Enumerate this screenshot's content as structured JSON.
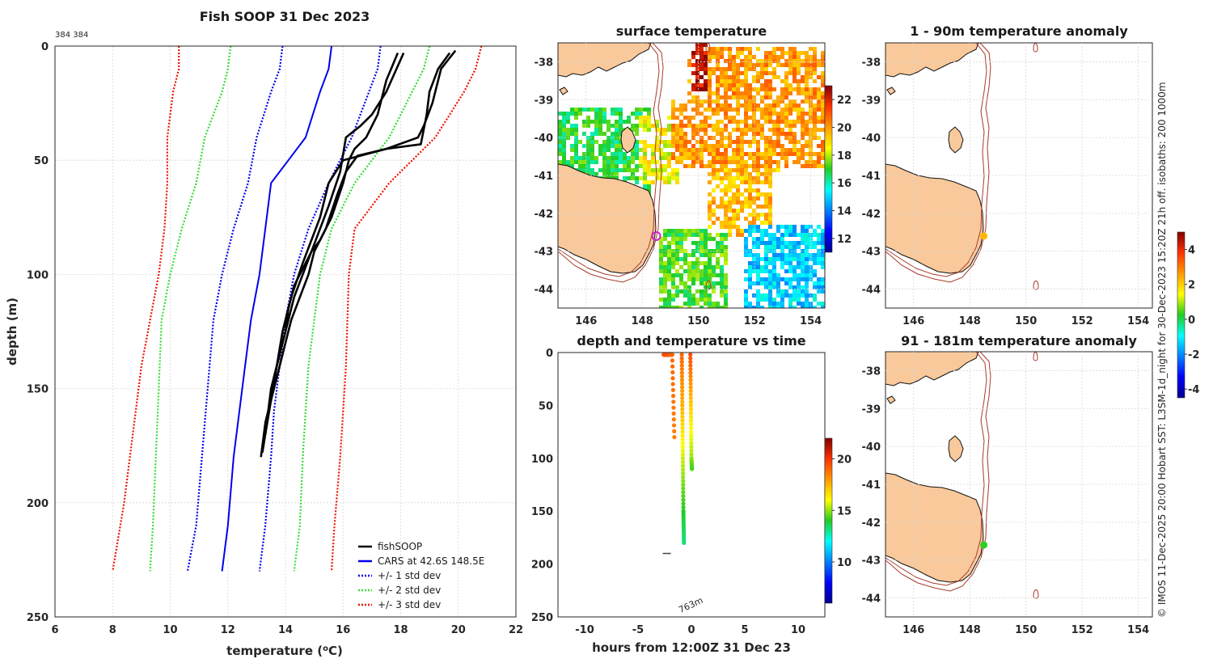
{
  "main_title": "Fish SOOP 31 Dec 2023",
  "profile_id": "384 384",
  "credit": "© IMOS 11-Dec-2025 20:00 Hobart SST: L3SM-1d_night for 30-Dec-2023 15:20Z 21h off. isobaths: 200  1000m",
  "colors": {
    "fish": "#000000",
    "cars": "#0000ee",
    "std1": "#0000ee",
    "std2": "#33dd33",
    "std3": "#ee1100",
    "land": "#f9c99b",
    "isobath": "#a83a2a",
    "marker_surface": "#cc22cc"
  },
  "chart_data": [
    {
      "id": "profile",
      "type": "line",
      "title": "Fish SOOP 31 Dec 2023",
      "xlabel": "temperature (°C)",
      "ylabel": "depth (m)",
      "xlim": [
        6,
        22
      ],
      "ylim": [
        250,
        0
      ],
      "xticks": [
        "6",
        "8",
        "10",
        "12",
        "14",
        "16",
        "18",
        "20",
        "22"
      ],
      "yticks": [
        "0",
        "50",
        "100",
        "150",
        "200",
        "250"
      ],
      "grid": true,
      "legend_position": "bottom-right",
      "legend": [
        {
          "label": "fishSOOP",
          "key": "fish"
        },
        {
          "label": "CARS at 42.6S 148.5E",
          "key": "cars"
        },
        {
          "label": "+/- 1 std dev",
          "key": "std1"
        },
        {
          "label": "+/- 2 std dev",
          "key": "std2"
        },
        {
          "label": "+/- 3 std dev",
          "key": "std3"
        }
      ],
      "series": [
        {
          "name": "CARS mean",
          "key": "cars",
          "dash": false,
          "x": [
            15.6,
            15.5,
            15.2,
            14.7,
            14.1,
            13.5,
            13.3,
            13.1,
            12.8,
            12.6,
            12.4,
            12.2,
            12.0,
            11.8
          ],
          "y": [
            0,
            10,
            20,
            40,
            50,
            60,
            80,
            100,
            120,
            140,
            160,
            180,
            210,
            230
          ]
        },
        {
          "name": "+1 std",
          "key": "std1",
          "dash": true,
          "x": [
            17.3,
            17.2,
            16.9,
            16.3,
            15.5,
            14.8,
            14.3,
            14.0,
            13.8,
            13.6,
            13.5,
            13.3,
            13.1
          ],
          "y": [
            0,
            10,
            20,
            40,
            60,
            80,
            100,
            120,
            140,
            160,
            180,
            210,
            230
          ]
        },
        {
          "name": "-1 std",
          "key": "std1",
          "dash": true,
          "x": [
            13.9,
            13.8,
            13.5,
            13.0,
            12.7,
            12.2,
            11.8,
            11.5,
            11.3,
            11.1,
            10.9,
            10.6
          ],
          "y": [
            0,
            10,
            20,
            40,
            60,
            80,
            100,
            120,
            150,
            180,
            210,
            230
          ]
        },
        {
          "name": "+2 std",
          "key": "std2",
          "dash": true,
          "x": [
            19.0,
            18.8,
            18.4,
            17.6,
            16.4,
            15.6,
            15.2,
            15.0,
            14.8,
            14.7,
            14.6,
            14.5,
            14.3
          ],
          "y": [
            0,
            10,
            20,
            40,
            60,
            80,
            100,
            120,
            140,
            160,
            180,
            210,
            230
          ]
        },
        {
          "name": "-2 std",
          "key": "std2",
          "dash": true,
          "x": [
            12.1,
            12.0,
            11.8,
            11.2,
            10.9,
            10.4,
            10.0,
            9.7,
            9.6,
            9.5,
            9.4,
            9.3
          ],
          "y": [
            0,
            10,
            20,
            40,
            60,
            80,
            100,
            120,
            150,
            180,
            210,
            230
          ]
        },
        {
          "name": "+3 std",
          "key": "std3",
          "dash": true,
          "x": [
            20.8,
            20.6,
            20.2,
            19.2,
            17.6,
            16.4,
            16.2,
            16.1,
            16.0,
            15.9,
            15.7,
            15.6
          ],
          "y": [
            0,
            10,
            20,
            40,
            60,
            80,
            100,
            140,
            160,
            180,
            210,
            230
          ]
        },
        {
          "name": "-3 std",
          "key": "std3",
          "dash": true,
          "x": [
            10.3,
            10.3,
            10.1,
            9.9,
            9.9,
            9.8,
            9.6,
            9.3,
            9.0,
            8.8,
            8.6,
            8.4,
            8.0
          ],
          "y": [
            0,
            10,
            20,
            40,
            60,
            80,
            100,
            120,
            140,
            160,
            180,
            200,
            230
          ]
        },
        {
          "name": "fishSOOP cast 1",
          "key": "fish",
          "dash": false,
          "x": [
            17.9,
            17.5,
            17.2,
            16.8,
            16.4,
            16.2,
            16.0,
            15.6,
            15.2,
            14.9,
            14.5,
            14.3,
            14.1,
            14.0,
            13.8,
            13.6,
            13.5,
            13.3,
            13.2,
            13.15
          ],
          "y": [
            3,
            15,
            30,
            40,
            45,
            50,
            60,
            75,
            85,
            90,
            100,
            105,
            115,
            125,
            135,
            145,
            155,
            165,
            175,
            180
          ]
        },
        {
          "name": "fishSOOP cast 2",
          "key": "fish",
          "dash": false,
          "x": [
            19.7,
            19.3,
            19.0,
            18.9,
            18.7,
            17.5,
            16.5,
            16.1,
            15.8,
            15.4,
            15.0,
            14.8,
            14.5,
            14.2,
            14.0,
            13.8,
            13.6,
            13.4,
            13.3
          ],
          "y": [
            3,
            10,
            20,
            30,
            43,
            45,
            48,
            55,
            65,
            80,
            90,
            100,
            110,
            120,
            130,
            140,
            150,
            160,
            165
          ]
        },
        {
          "name": "fishSOOP cast 3",
          "key": "fish",
          "dash": false,
          "x": [
            18.1,
            17.5,
            17.0,
            16.6,
            16.3,
            16.1,
            15.9,
            15.5,
            15.2,
            14.9,
            14.6,
            14.3,
            14.1,
            13.9,
            13.7,
            13.5,
            13.4,
            13.3,
            13.2
          ],
          "y": [
            3,
            20,
            30,
            35,
            38,
            40,
            55,
            70,
            80,
            90,
            100,
            110,
            120,
            130,
            140,
            150,
            160,
            170,
            178
          ]
        },
        {
          "name": "fishSOOP cast 4",
          "key": "fish",
          "dash": false,
          "x": [
            19.9,
            19.4,
            19.1,
            18.8,
            18.6,
            17.5,
            16.0,
            15.5,
            15.2,
            14.9,
            14.6,
            14.2,
            13.9,
            13.7,
            13.5,
            13.3
          ],
          "y": [
            2,
            10,
            25,
            35,
            40,
            45,
            50,
            60,
            75,
            85,
            95,
            110,
            125,
            140,
            155,
            170
          ]
        }
      ]
    },
    {
      "id": "sst_map",
      "type": "heatmap",
      "title": "surface temperature",
      "xlim": [
        145,
        154.5
      ],
      "ylim": [
        -44.5,
        -37.5
      ],
      "xticks": [
        "146",
        "148",
        "150",
        "152",
        "154"
      ],
      "yticks": [
        "-38",
        "-39",
        "-40",
        "-41",
        "-42",
        "-43",
        "-44"
      ],
      "colorbar": {
        "min": 11,
        "max": 23,
        "ticks": [
          "12",
          "14",
          "16",
          "18",
          "20",
          "22"
        ]
      },
      "marker": {
        "lon": 148.5,
        "lat": -42.6
      },
      "regions": [
        {
          "lon": [
            145,
            148.2
          ],
          "lat": [
            -41.6,
            -39.2
          ],
          "temp": 16.8
        },
        {
          "lon": [
            147.8,
            149.3
          ],
          "lat": [
            -41.2,
            -39.4
          ],
          "temp": 18.5
        },
        {
          "lon": [
            149,
            154.5
          ],
          "lat": [
            -40.8,
            -37.6
          ],
          "temp": 20.0
        },
        {
          "lon": [
            150.2,
            152.8
          ],
          "lat": [
            -42.6,
            -40.8
          ],
          "temp": 19.5
        },
        {
          "lon": [
            148.5,
            151
          ],
          "lat": [
            -44.5,
            -42.4
          ],
          "temp": 17.2
        },
        {
          "lon": [
            151.5,
            154.5
          ],
          "lat": [
            -44.5,
            -42.2
          ],
          "temp": 15.0
        },
        {
          "lon": [
            149.7,
            150.3
          ],
          "lat": [
            -38.8,
            -37.5
          ],
          "temp": 22.2
        }
      ]
    },
    {
      "id": "depth_time",
      "type": "scatter",
      "title": "depth and temperature vs time",
      "xlabel": "hours from 12:00Z 31 Dec 23",
      "xlim": [
        -12.5,
        12.5
      ],
      "ylim": [
        250,
        0
      ],
      "xticks": [
        "-10",
        "-5",
        "0",
        "5",
        "10"
      ],
      "yticks": [
        "0",
        "50",
        "100",
        "150",
        "200",
        "250"
      ],
      "colorbar": {
        "min": 6,
        "max": 22,
        "ticks": [
          "10",
          "15",
          "20"
        ]
      },
      "annotation": "763m",
      "bottom_depth_marker": {
        "x": -2.3,
        "y": 190
      },
      "casts": [
        {
          "x": [
            -2.6,
            -2.3,
            -2.1,
            -1.8,
            -1.6
          ],
          "depth": [
            2,
            2,
            2,
            2,
            80
          ],
          "temp": [
            19.5,
            19.5,
            19.3,
            19.0,
            18.5
          ]
        },
        {
          "x": [
            -0.9,
            -0.85,
            -0.8,
            -0.75,
            -0.7
          ],
          "depth": [
            2,
            50,
            100,
            150,
            180
          ],
          "temp": [
            19.0,
            17.5,
            15.5,
            14.0,
            13.2
          ]
        },
        {
          "x": [
            -0.1,
            -0.05,
            0,
            0.05
          ],
          "depth": [
            2,
            50,
            100,
            110
          ],
          "temp": [
            19.5,
            17.0,
            15.0,
            14.3
          ]
        }
      ]
    },
    {
      "id": "anom_upper",
      "type": "heatmap",
      "title": "1 - 90m temperature anomaly",
      "xlim": [
        145,
        154.5
      ],
      "ylim": [
        -44.5,
        -37.5
      ],
      "xticks": [
        "146",
        "148",
        "150",
        "152",
        "154"
      ],
      "yticks": [
        "-38",
        "-39",
        "-40",
        "-41",
        "-42",
        "-43",
        "-44"
      ],
      "point": {
        "lon": 148.5,
        "lat": -42.6,
        "anomaly": 2.3
      }
    },
    {
      "id": "anom_lower",
      "type": "heatmap",
      "title": "91 - 181m temperature anomaly",
      "xlim": [
        145,
        154.5
      ],
      "ylim": [
        -44.5,
        -37.5
      ],
      "xticks": [
        "146",
        "148",
        "150",
        "152",
        "154"
      ],
      "yticks": [
        "-38",
        "-39",
        "-40",
        "-41",
        "-42",
        "-43",
        "-44"
      ],
      "point": {
        "lon": 148.5,
        "lat": -42.6,
        "anomaly": 0.3
      }
    },
    {
      "id": "anomaly_colorbar",
      "type": "heatmap",
      "colorbar": {
        "min": -4.5,
        "max": 5,
        "ticks": [
          "4",
          "2",
          "0",
          "-2",
          "-4"
        ]
      }
    }
  ]
}
